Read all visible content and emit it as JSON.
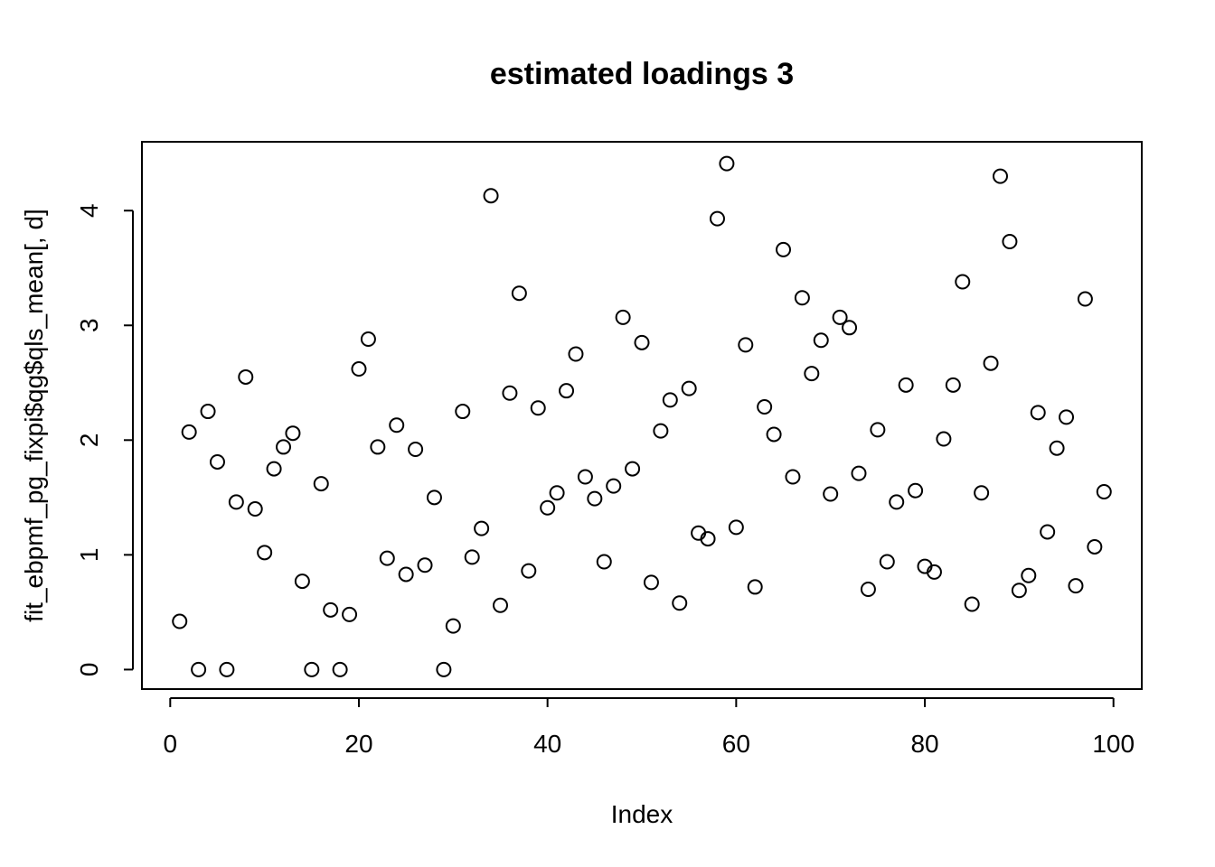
{
  "chart_data": {
    "type": "scatter",
    "title": "estimated loadings 3",
    "xlabel": "Index",
    "ylabel": "fit_ebpmf_pg_fixpi$qg$qls_mean[, d]",
    "xlim": [
      -3,
      103
    ],
    "ylim": [
      -0.17,
      4.6
    ],
    "xticks": [
      0,
      20,
      40,
      60,
      80,
      100
    ],
    "yticks": [
      0,
      1,
      2,
      3,
      4
    ],
    "xtick_labels": [
      "0",
      "20",
      "40",
      "60",
      "80",
      "100"
    ],
    "ytick_labels": [
      "0",
      "1",
      "2",
      "3",
      "4"
    ],
    "x": [
      1,
      2,
      3,
      4,
      5,
      6,
      7,
      8,
      9,
      10,
      11,
      12,
      13,
      14,
      15,
      16,
      17,
      18,
      19,
      20,
      21,
      22,
      23,
      24,
      25,
      26,
      27,
      28,
      29,
      30,
      31,
      32,
      33,
      34,
      35,
      36,
      37,
      38,
      39,
      40,
      41,
      42,
      43,
      44,
      45,
      46,
      47,
      48,
      49,
      50,
      51,
      52,
      53,
      54,
      55,
      56,
      57,
      58,
      59,
      60,
      61,
      62,
      63,
      64,
      65,
      66,
      67,
      68,
      69,
      70,
      71,
      72,
      73,
      74,
      75,
      76,
      77,
      78,
      79,
      80,
      81,
      82,
      83,
      84,
      85,
      86,
      87,
      88,
      89,
      90,
      91,
      92,
      93,
      94,
      95,
      96,
      97,
      98,
      99
    ],
    "y": [
      0.42,
      2.07,
      0.0,
      2.25,
      1.81,
      0.0,
      1.46,
      2.55,
      1.4,
      1.02,
      1.75,
      1.94,
      2.06,
      0.77,
      0.0,
      1.62,
      0.52,
      0.0,
      0.48,
      2.62,
      2.88,
      1.94,
      0.97,
      2.13,
      0.83,
      1.92,
      0.91,
      1.5,
      0.0,
      0.38,
      2.25,
      0.98,
      1.23,
      4.13,
      0.56,
      2.41,
      3.28,
      0.86,
      2.28,
      1.41,
      1.54,
      2.43,
      2.75,
      1.68,
      1.49,
      0.94,
      1.6,
      3.07,
      1.75,
      2.85,
      0.76,
      2.08,
      2.35,
      0.58,
      2.45,
      1.19,
      1.14,
      3.93,
      4.41,
      1.24,
      2.83,
      0.72,
      2.29,
      2.05,
      3.66,
      1.68,
      3.24,
      2.58,
      2.87,
      1.53,
      3.07,
      2.98,
      1.71,
      0.7,
      2.09,
      0.94,
      1.46,
      2.48,
      1.56,
      0.9,
      0.85,
      2.01,
      2.48,
      3.38,
      0.57,
      1.54,
      2.67,
      4.3,
      3.73,
      0.69,
      0.82,
      2.24,
      1.2,
      1.93,
      2.2,
      0.73,
      3.23,
      1.07,
      1.55
    ]
  }
}
